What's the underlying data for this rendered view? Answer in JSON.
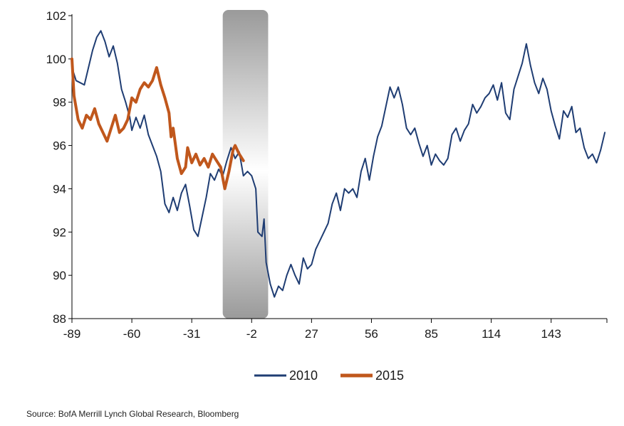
{
  "chart_data": {
    "type": "line",
    "xlim": [
      -89,
      170
    ],
    "ylim": [
      88,
      102
    ],
    "x_ticks": [
      -89,
      -60,
      -31,
      -2,
      27,
      56,
      85,
      114,
      143
    ],
    "x_tick_labels": [
      "-89",
      "-60",
      "-31",
      "-2",
      "27",
      "56",
      "85",
      "114",
      "143"
    ],
    "y_ticks": [
      88,
      90,
      92,
      94,
      96,
      98,
      100,
      102
    ],
    "y_tick_labels": [
      "88",
      "90",
      "92",
      "94",
      "96",
      "98",
      "100",
      "102"
    ],
    "shaded_region": [
      -16,
      6
    ],
    "legend_position": "bottom-center",
    "series": [
      {
        "name": "2010",
        "color": "#1f3d73",
        "points": [
          [
            -89,
            99.6
          ],
          [
            -87,
            99.0
          ],
          [
            -85,
            98.9
          ],
          [
            -83,
            98.8
          ],
          [
            -81,
            99.6
          ],
          [
            -79,
            100.4
          ],
          [
            -77,
            101.0
          ],
          [
            -75,
            101.3
          ],
          [
            -73,
            100.8
          ],
          [
            -71,
            100.1
          ],
          [
            -69,
            100.6
          ],
          [
            -67,
            99.8
          ],
          [
            -65,
            98.6
          ],
          [
            -63,
            98.0
          ],
          [
            -61,
            97.3
          ],
          [
            -60,
            96.7
          ],
          [
            -58,
            97.3
          ],
          [
            -56,
            96.8
          ],
          [
            -54,
            97.4
          ],
          [
            -52,
            96.5
          ],
          [
            -50,
            96.0
          ],
          [
            -48,
            95.5
          ],
          [
            -46,
            94.8
          ],
          [
            -44,
            93.3
          ],
          [
            -42,
            92.9
          ],
          [
            -40,
            93.6
          ],
          [
            -38,
            93.0
          ],
          [
            -36,
            93.8
          ],
          [
            -34,
            94.2
          ],
          [
            -32,
            93.2
          ],
          [
            -30,
            92.1
          ],
          [
            -28,
            91.8
          ],
          [
            -26,
            92.7
          ],
          [
            -24,
            93.6
          ],
          [
            -22,
            94.7
          ],
          [
            -20,
            94.4
          ],
          [
            -18,
            94.9
          ],
          [
            -16,
            94.6
          ],
          [
            -14,
            95.3
          ],
          [
            -12,
            95.9
          ],
          [
            -10,
            95.4
          ],
          [
            -8,
            95.7
          ],
          [
            -6,
            94.6
          ],
          [
            -4,
            94.8
          ],
          [
            -2,
            94.6
          ],
          [
            0,
            94.0
          ],
          [
            1,
            92.0
          ],
          [
            3,
            91.8
          ],
          [
            4,
            92.6
          ],
          [
            5,
            90.6
          ],
          [
            7,
            89.6
          ],
          [
            9,
            89.0
          ],
          [
            11,
            89.5
          ],
          [
            13,
            89.3
          ],
          [
            15,
            90.0
          ],
          [
            17,
            90.5
          ],
          [
            19,
            90.0
          ],
          [
            21,
            89.6
          ],
          [
            23,
            90.8
          ],
          [
            25,
            90.3
          ],
          [
            27,
            90.5
          ],
          [
            29,
            91.2
          ],
          [
            31,
            91.6
          ],
          [
            33,
            92.0
          ],
          [
            35,
            92.4
          ],
          [
            37,
            93.3
          ],
          [
            39,
            93.8
          ],
          [
            41,
            93.0
          ],
          [
            43,
            94.0
          ],
          [
            45,
            93.8
          ],
          [
            47,
            94.0
          ],
          [
            49,
            93.6
          ],
          [
            51,
            94.8
          ],
          [
            53,
            95.4
          ],
          [
            55,
            94.4
          ],
          [
            57,
            95.5
          ],
          [
            59,
            96.4
          ],
          [
            61,
            96.9
          ],
          [
            63,
            97.8
          ],
          [
            65,
            98.7
          ],
          [
            67,
            98.2
          ],
          [
            69,
            98.7
          ],
          [
            71,
            97.9
          ],
          [
            73,
            96.8
          ],
          [
            75,
            96.5
          ],
          [
            77,
            96.8
          ],
          [
            79,
            96.1
          ],
          [
            81,
            95.5
          ],
          [
            83,
            96.0
          ],
          [
            85,
            95.1
          ],
          [
            87,
            95.6
          ],
          [
            89,
            95.3
          ],
          [
            91,
            95.1
          ],
          [
            93,
            95.4
          ],
          [
            95,
            96.5
          ],
          [
            97,
            96.8
          ],
          [
            99,
            96.2
          ],
          [
            101,
            96.7
          ],
          [
            103,
            97.0
          ],
          [
            105,
            97.9
          ],
          [
            107,
            97.5
          ],
          [
            109,
            97.8
          ],
          [
            111,
            98.2
          ],
          [
            113,
            98.4
          ],
          [
            115,
            98.8
          ],
          [
            117,
            98.1
          ],
          [
            119,
            98.9
          ],
          [
            121,
            97.5
          ],
          [
            123,
            97.2
          ],
          [
            125,
            98.6
          ],
          [
            127,
            99.2
          ],
          [
            129,
            99.8
          ],
          [
            131,
            100.7
          ],
          [
            133,
            99.7
          ],
          [
            135,
            98.9
          ],
          [
            137,
            98.4
          ],
          [
            139,
            99.1
          ],
          [
            141,
            98.6
          ],
          [
            143,
            97.6
          ],
          [
            145,
            96.9
          ],
          [
            147,
            96.3
          ],
          [
            149,
            97.6
          ],
          [
            151,
            97.3
          ],
          [
            153,
            97.8
          ],
          [
            155,
            96.6
          ],
          [
            157,
            96.8
          ],
          [
            159,
            95.9
          ],
          [
            161,
            95.4
          ],
          [
            163,
            95.6
          ],
          [
            165,
            95.2
          ],
          [
            167,
            95.8
          ],
          [
            169,
            96.6
          ]
        ]
      },
      {
        "name": "2015",
        "color": "#c0571c",
        "points": [
          [
            -89,
            100.0
          ],
          [
            -88,
            98.3
          ],
          [
            -86,
            97.2
          ],
          [
            -84,
            96.8
          ],
          [
            -82,
            97.4
          ],
          [
            -80,
            97.2
          ],
          [
            -78,
            97.7
          ],
          [
            -76,
            97.0
          ],
          [
            -74,
            96.6
          ],
          [
            -72,
            96.2
          ],
          [
            -70,
            96.8
          ],
          [
            -68,
            97.4
          ],
          [
            -66,
            96.6
          ],
          [
            -64,
            96.8
          ],
          [
            -62,
            97.2
          ],
          [
            -60,
            98.2
          ],
          [
            -58,
            98.0
          ],
          [
            -56,
            98.6
          ],
          [
            -54,
            98.9
          ],
          [
            -52,
            98.7
          ],
          [
            -50,
            99.0
          ],
          [
            -48,
            99.6
          ],
          [
            -46,
            98.8
          ],
          [
            -44,
            98.2
          ],
          [
            -42,
            97.5
          ],
          [
            -41,
            96.4
          ],
          [
            -40,
            96.8
          ],
          [
            -38,
            95.4
          ],
          [
            -36,
            94.7
          ],
          [
            -34,
            95.0
          ],
          [
            -33,
            95.9
          ],
          [
            -31,
            95.2
          ],
          [
            -29,
            95.6
          ],
          [
            -27,
            95.1
          ],
          [
            -25,
            95.4
          ],
          [
            -23,
            95.0
          ],
          [
            -21,
            95.6
          ],
          [
            -19,
            95.3
          ],
          [
            -17,
            95.0
          ],
          [
            -15,
            94.0
          ],
          [
            -13,
            94.8
          ],
          [
            -11,
            95.8
          ],
          [
            -10,
            96.0
          ],
          [
            -8,
            95.6
          ],
          [
            -6,
            95.3
          ]
        ]
      }
    ]
  },
  "legend": [
    {
      "label": "2010",
      "color": "#1f3d73"
    },
    {
      "label": "2015",
      "color": "#c0571c"
    }
  ],
  "source": "Source: BofA Merrill Lynch Global Research, Bloomberg"
}
